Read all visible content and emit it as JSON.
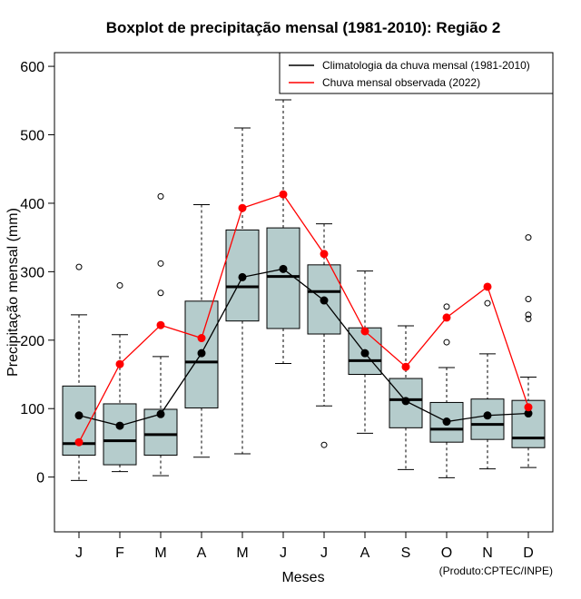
{
  "chart_data": {
    "type": "boxplot",
    "title": "Boxplot de precipitação mensal (1981-2010): Região 2",
    "xlabel": "Meses",
    "ylabel": "Precipitação mensal (mm)",
    "credit": "(Produto:CPTEC/INPE)",
    "ylim": [
      -80,
      620
    ],
    "yticks": [
      0,
      100,
      200,
      300,
      400,
      500,
      600
    ],
    "categories": [
      "J",
      "F",
      "M",
      "A",
      "M",
      "J",
      "J",
      "A",
      "S",
      "O",
      "N",
      "D"
    ],
    "boxes": [
      {
        "min": -5,
        "q1": 32,
        "median": 49,
        "q3": 133,
        "max": 237,
        "outliers": [
          307
        ]
      },
      {
        "min": 8,
        "q1": 18,
        "median": 53,
        "q3": 107,
        "max": 208,
        "outliers": [
          280
        ]
      },
      {
        "min": 2,
        "q1": 32,
        "median": 62,
        "q3": 99,
        "max": 176,
        "outliers": [
          269,
          312,
          410
        ]
      },
      {
        "min": 29,
        "q1": 101,
        "median": 168,
        "q3": 257,
        "max": 398,
        "outliers": []
      },
      {
        "min": 34,
        "q1": 228,
        "median": 278,
        "q3": 361,
        "max": 510,
        "outliers": []
      },
      {
        "min": 166,
        "q1": 217,
        "median": 293,
        "q3": 364,
        "max": 551,
        "outliers": []
      },
      {
        "min": 104,
        "q1": 209,
        "median": 271,
        "q3": 310,
        "max": 370,
        "outliers": [
          47
        ]
      },
      {
        "min": 64,
        "q1": 150,
        "median": 170,
        "q3": 218,
        "max": 301,
        "outliers": []
      },
      {
        "min": 11,
        "q1": 72,
        "median": 113,
        "q3": 144,
        "max": 221,
        "outliers": []
      },
      {
        "min": -1,
        "q1": 51,
        "median": 70,
        "q3": 109,
        "max": 160,
        "outliers": [
          197,
          249
        ]
      },
      {
        "min": 12,
        "q1": 55,
        "median": 77,
        "q3": 114,
        "max": 180,
        "outliers": [
          254
        ]
      },
      {
        "min": 14,
        "q1": 43,
        "median": 57,
        "q3": 112,
        "max": 146,
        "outliers": [
          231,
          237,
          260,
          350
        ]
      }
    ],
    "series": [
      {
        "name": "Climatologia da chuva mensal (1981-2010)",
        "color": "#000000",
        "values": [
          90,
          75,
          92,
          181,
          292,
          304,
          258,
          181,
          111,
          81,
          90,
          93
        ]
      },
      {
        "name": "Chuva mensal observada (2022)",
        "color": "#ff0000",
        "values": [
          51,
          165,
          222,
          203,
          393,
          413,
          326,
          213,
          161,
          233,
          278,
          102
        ]
      }
    ],
    "box_fill": "#b5cccc",
    "legend_position": "top-right"
  }
}
